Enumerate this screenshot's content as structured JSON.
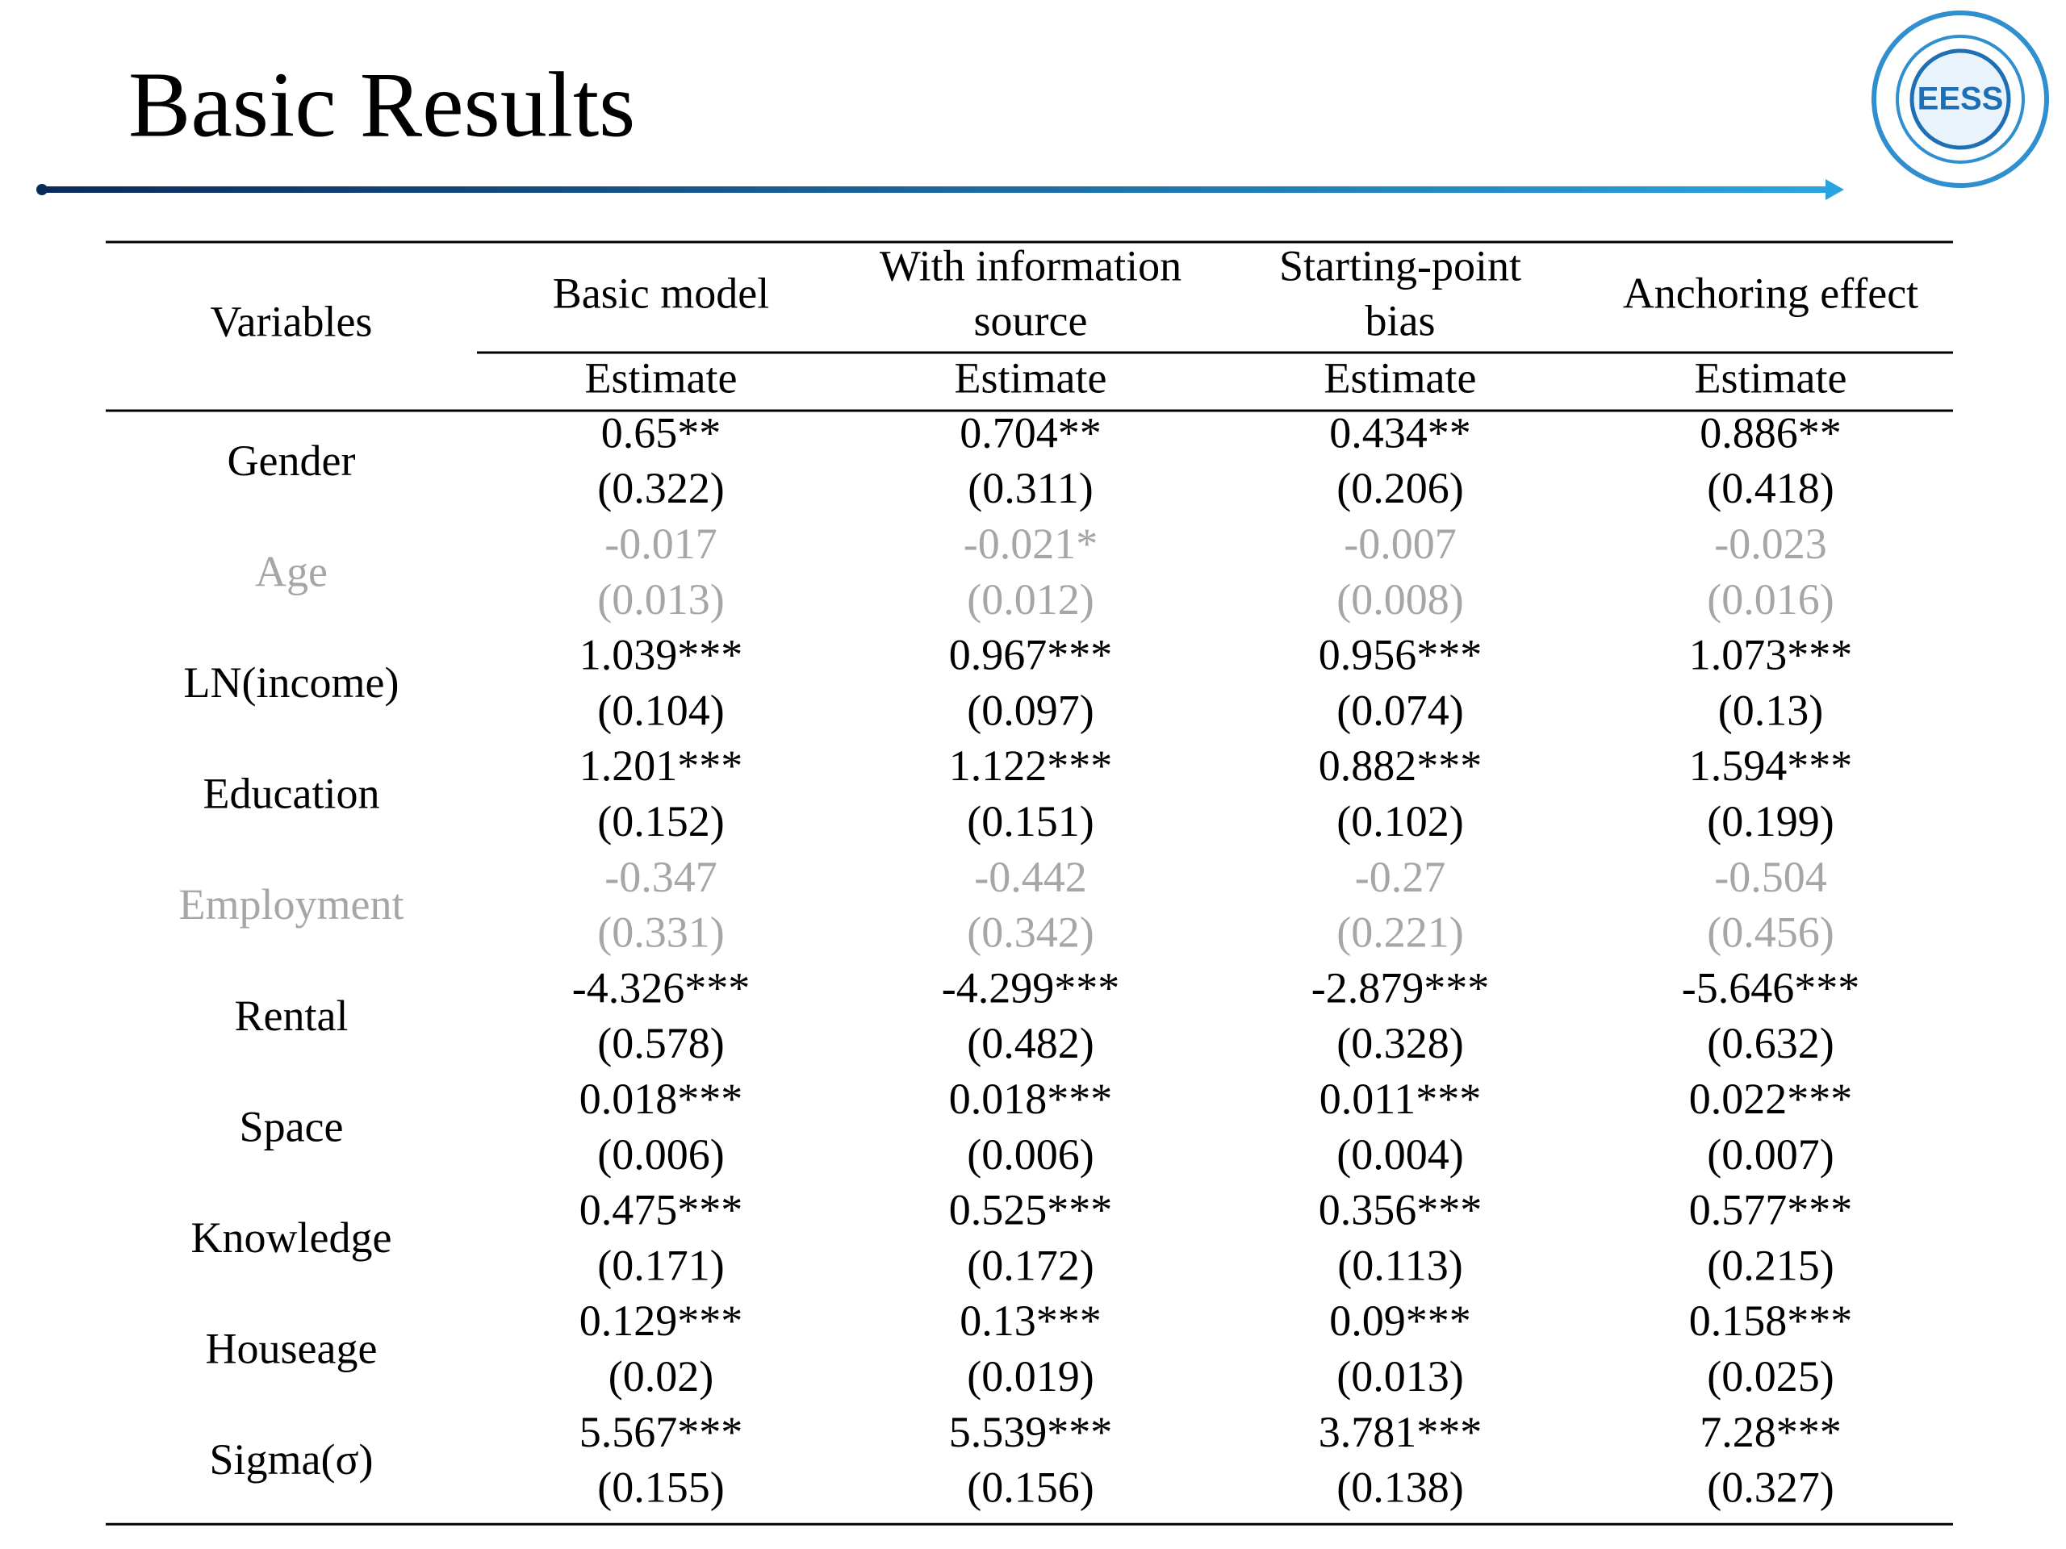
{
  "header": {
    "title": "Basic Results",
    "logo": "EESS"
  },
  "table": {
    "variables_header": "Variables",
    "columns": [
      {
        "name": [
          "Basic model"
        ],
        "sub": "Estimate"
      },
      {
        "name": [
          "With information",
          "source"
        ],
        "sub": "Estimate"
      },
      {
        "name": [
          "Starting-point",
          "bias"
        ],
        "sub": "Estimate"
      },
      {
        "name": [
          "Anchoring effect"
        ],
        "sub": "Estimate"
      }
    ],
    "rows": [
      {
        "variable": "Gender",
        "color": "#000000",
        "cells": [
          [
            "0.65**",
            "(0.322)"
          ],
          [
            "0.704**",
            "(0.311)"
          ],
          [
            "0.434**",
            "(0.206)"
          ],
          [
            "0.886**",
            "(0.418)"
          ]
        ]
      },
      {
        "variable": "Age",
        "color": "#a6a6a6",
        "cells": [
          [
            "-0.017",
            "(0.013)"
          ],
          [
            "-0.021*",
            "(0.012)"
          ],
          [
            "-0.007",
            "(0.008)"
          ],
          [
            "-0.023",
            "(0.016)"
          ]
        ]
      },
      {
        "variable": "LN(income)",
        "color": "#000000",
        "cells": [
          [
            "1.039***",
            "(0.104)"
          ],
          [
            "0.967***",
            "(0.097)"
          ],
          [
            "0.956***",
            "(0.074)"
          ],
          [
            "1.073***",
            "(0.13)"
          ]
        ]
      },
      {
        "variable": "Education",
        "color": "#000000",
        "cells": [
          [
            "1.201***",
            "(0.152)"
          ],
          [
            "1.122***",
            "(0.151)"
          ],
          [
            "0.882***",
            "(0.102)"
          ],
          [
            "1.594***",
            "(0.199)"
          ]
        ]
      },
      {
        "variable": "Employment",
        "color": "#a6a6a6",
        "cells": [
          [
            "-0.347",
            "(0.331)"
          ],
          [
            "-0.442",
            "(0.342)"
          ],
          [
            "-0.27",
            "(0.221)"
          ],
          [
            "-0.504",
            "(0.456)"
          ]
        ]
      },
      {
        "variable": "Rental",
        "color": "#000000",
        "cells": [
          [
            "-4.326***",
            "(0.578)"
          ],
          [
            "-4.299***",
            "(0.482)"
          ],
          [
            "-2.879***",
            "(0.328)"
          ],
          [
            "-5.646***",
            "(0.632)"
          ]
        ]
      },
      {
        "variable": "Space",
        "color": "#000000",
        "cells": [
          [
            "0.018***",
            "(0.006)"
          ],
          [
            "0.018***",
            "(0.006)"
          ],
          [
            "0.011***",
            "(0.004)"
          ],
          [
            "0.022***",
            "(0.007)"
          ]
        ]
      },
      {
        "variable": "Knowledge",
        "color": "#000000",
        "cells": [
          [
            "0.475***",
            "(0.171)"
          ],
          [
            "0.525***",
            "(0.172)"
          ],
          [
            "0.356***",
            "(0.113)"
          ],
          [
            "0.577***",
            "(0.215)"
          ]
        ]
      },
      {
        "variable": "Houseage",
        "color": "#000000",
        "cells": [
          [
            "0.129***",
            "(0.02)"
          ],
          [
            "0.13***",
            "(0.019)"
          ],
          [
            "0.09***",
            "(0.013)"
          ],
          [
            "0.158***",
            "(0.025)"
          ]
        ]
      },
      {
        "variable": "Sigma(σ)",
        "color": "#000000",
        "cells": [
          [
            "5.567***",
            "(0.155)"
          ],
          [
            "5.539***",
            "(0.156)"
          ],
          [
            "3.781***",
            "(0.138)"
          ],
          [
            "7.28***",
            "(0.327)"
          ]
        ]
      }
    ]
  }
}
